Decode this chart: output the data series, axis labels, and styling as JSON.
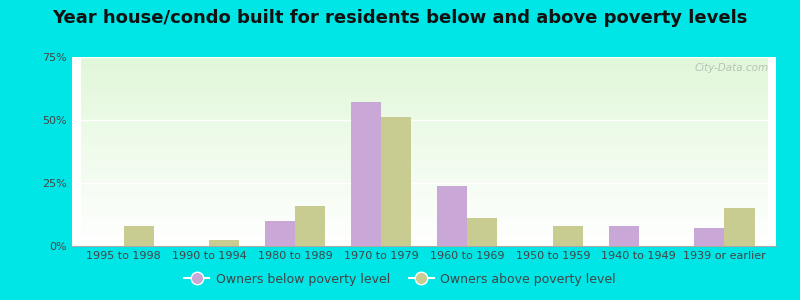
{
  "title": "Year house/condo built for residents below and above poverty levels",
  "categories": [
    "1995 to 1998",
    "1990 to 1994",
    "1980 to 1989",
    "1970 to 1979",
    "1960 to 1969",
    "1950 to 1959",
    "1940 to 1949",
    "1939 or earlier"
  ],
  "below_poverty": [
    0.0,
    0.0,
    10.0,
    57.0,
    24.0,
    0.0,
    8.0,
    7.0
  ],
  "above_poverty": [
    8.0,
    2.5,
    16.0,
    51.0,
    11.0,
    8.0,
    0.0,
    15.0
  ],
  "below_color": "#c9a8d8",
  "above_color": "#c8cc90",
  "ylim": [
    0,
    75
  ],
  "yticks": [
    0,
    25,
    50,
    75
  ],
  "ytick_labels": [
    "0%",
    "25%",
    "50%",
    "75%"
  ],
  "outer_bg": "#00e5e5",
  "plot_bg_top_left": "#c8e8c0",
  "plot_bg_bottom_right": "#f5fff5",
  "legend_below_label": "Owners below poverty level",
  "legend_above_label": "Owners above poverty level",
  "watermark": "City-Data.com",
  "title_fontsize": 13,
  "tick_fontsize": 8
}
